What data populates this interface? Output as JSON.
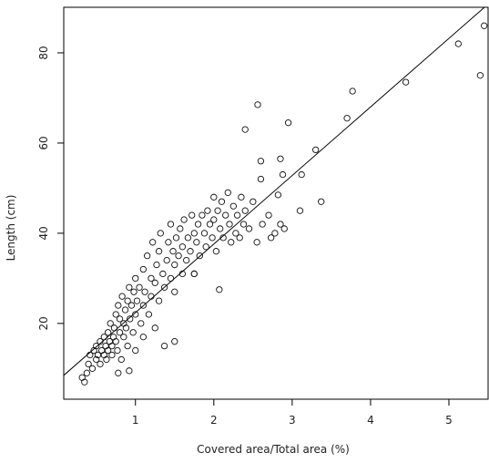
{
  "chart_data": {
    "type": "scatter",
    "x_label": "Covered area/Total area (%)",
    "y_label": "Length (cm)",
    "xlim": [
      0.085,
      5.5
    ],
    "ylim": [
      3.2,
      90.1
    ],
    "xticks": [
      1,
      2,
      3,
      4,
      5
    ],
    "yticks": [
      20,
      40,
      60,
      80
    ],
    "fit_line": {
      "intercept": 7.2,
      "slope": 15.2
    },
    "x": [
      0.32,
      0.35,
      0.38,
      0.4,
      0.42,
      0.45,
      0.47,
      0.5,
      0.5,
      0.52,
      0.55,
      0.55,
      0.57,
      0.6,
      0.6,
      0.62,
      0.63,
      0.65,
      0.65,
      0.67,
      0.68,
      0.7,
      0.7,
      0.72,
      0.73,
      0.75,
      0.75,
      0.77,
      0.78,
      0.8,
      0.8,
      0.82,
      0.83,
      0.85,
      0.85,
      0.87,
      0.88,
      0.9,
      0.9,
      0.92,
      0.93,
      0.95,
      0.97,
      0.98,
      1.0,
      1.0,
      1.02,
      1.05,
      1.07,
      1.1,
      1.1,
      1.12,
      1.15,
      1.17,
      1.2,
      1.2,
      1.22,
      1.25,
      1.27,
      1.3,
      1.3,
      1.32,
      1.35,
      1.37,
      1.4,
      1.42,
      1.45,
      1.45,
      1.48,
      1.5,
      1.5,
      1.52,
      1.55,
      1.57,
      1.6,
      1.6,
      1.62,
      1.65,
      1.67,
      1.7,
      1.72,
      1.75,
      1.75,
      1.78,
      1.8,
      1.82,
      1.85,
      1.88,
      1.9,
      1.92,
      1.95,
      1.98,
      2.0,
      2.0,
      2.03,
      2.05,
      2.08,
      2.1,
      2.12,
      2.15,
      2.18,
      2.2,
      2.22,
      2.25,
      2.28,
      2.3,
      2.33,
      2.35,
      2.38,
      2.4,
      2.45,
      2.5,
      2.55,
      2.6,
      2.62,
      2.7,
      2.73,
      2.78,
      2.82,
      2.85,
      2.88,
      2.9,
      2.95,
      3.1,
      3.12,
      3.3,
      3.37,
      2.4,
      2.56,
      2.6,
      2.85,
      3.7,
      3.77,
      4.45,
      5.12,
      5.4,
      5.45,
      1.75,
      2.07,
      1.5,
      1.37,
      0.92,
      0.78,
      1.0,
      1.1,
      1.25
    ],
    "y": [
      8,
      7,
      9,
      11,
      13,
      10,
      14,
      12,
      15,
      13,
      16,
      11,
      14,
      17,
      13,
      15,
      12,
      18,
      14,
      16,
      20,
      15,
      13,
      17,
      19,
      22,
      16,
      14,
      24,
      18,
      21,
      12,
      26,
      20,
      17,
      23,
      19,
      25,
      15,
      28,
      21,
      24,
      18,
      27,
      22,
      30,
      25,
      28,
      20,
      32,
      24,
      27,
      35,
      22,
      30,
      26,
      38,
      29,
      33,
      25,
      36,
      40,
      31,
      28,
      34,
      38,
      30,
      42,
      36,
      33,
      27,
      39,
      35,
      41,
      31,
      37,
      43,
      34,
      39,
      36,
      44,
      40,
      31,
      38,
      42,
      35,
      44,
      40,
      37,
      45,
      42,
      39,
      48,
      43,
      36,
      45,
      41,
      47,
      39,
      44,
      49,
      42,
      38,
      46,
      40,
      44,
      39,
      48,
      42,
      45,
      41,
      47,
      38,
      52,
      42,
      44,
      39,
      40,
      48.5,
      42,
      53,
      41,
      64.5,
      45,
      53,
      58.5,
      47,
      63,
      68.5,
      56,
      56.5,
      65.5,
      71.5,
      73.5,
      82,
      75,
      86,
      31,
      27.5,
      16,
      15,
      9.5,
      9,
      14,
      17,
      19
    ]
  }
}
